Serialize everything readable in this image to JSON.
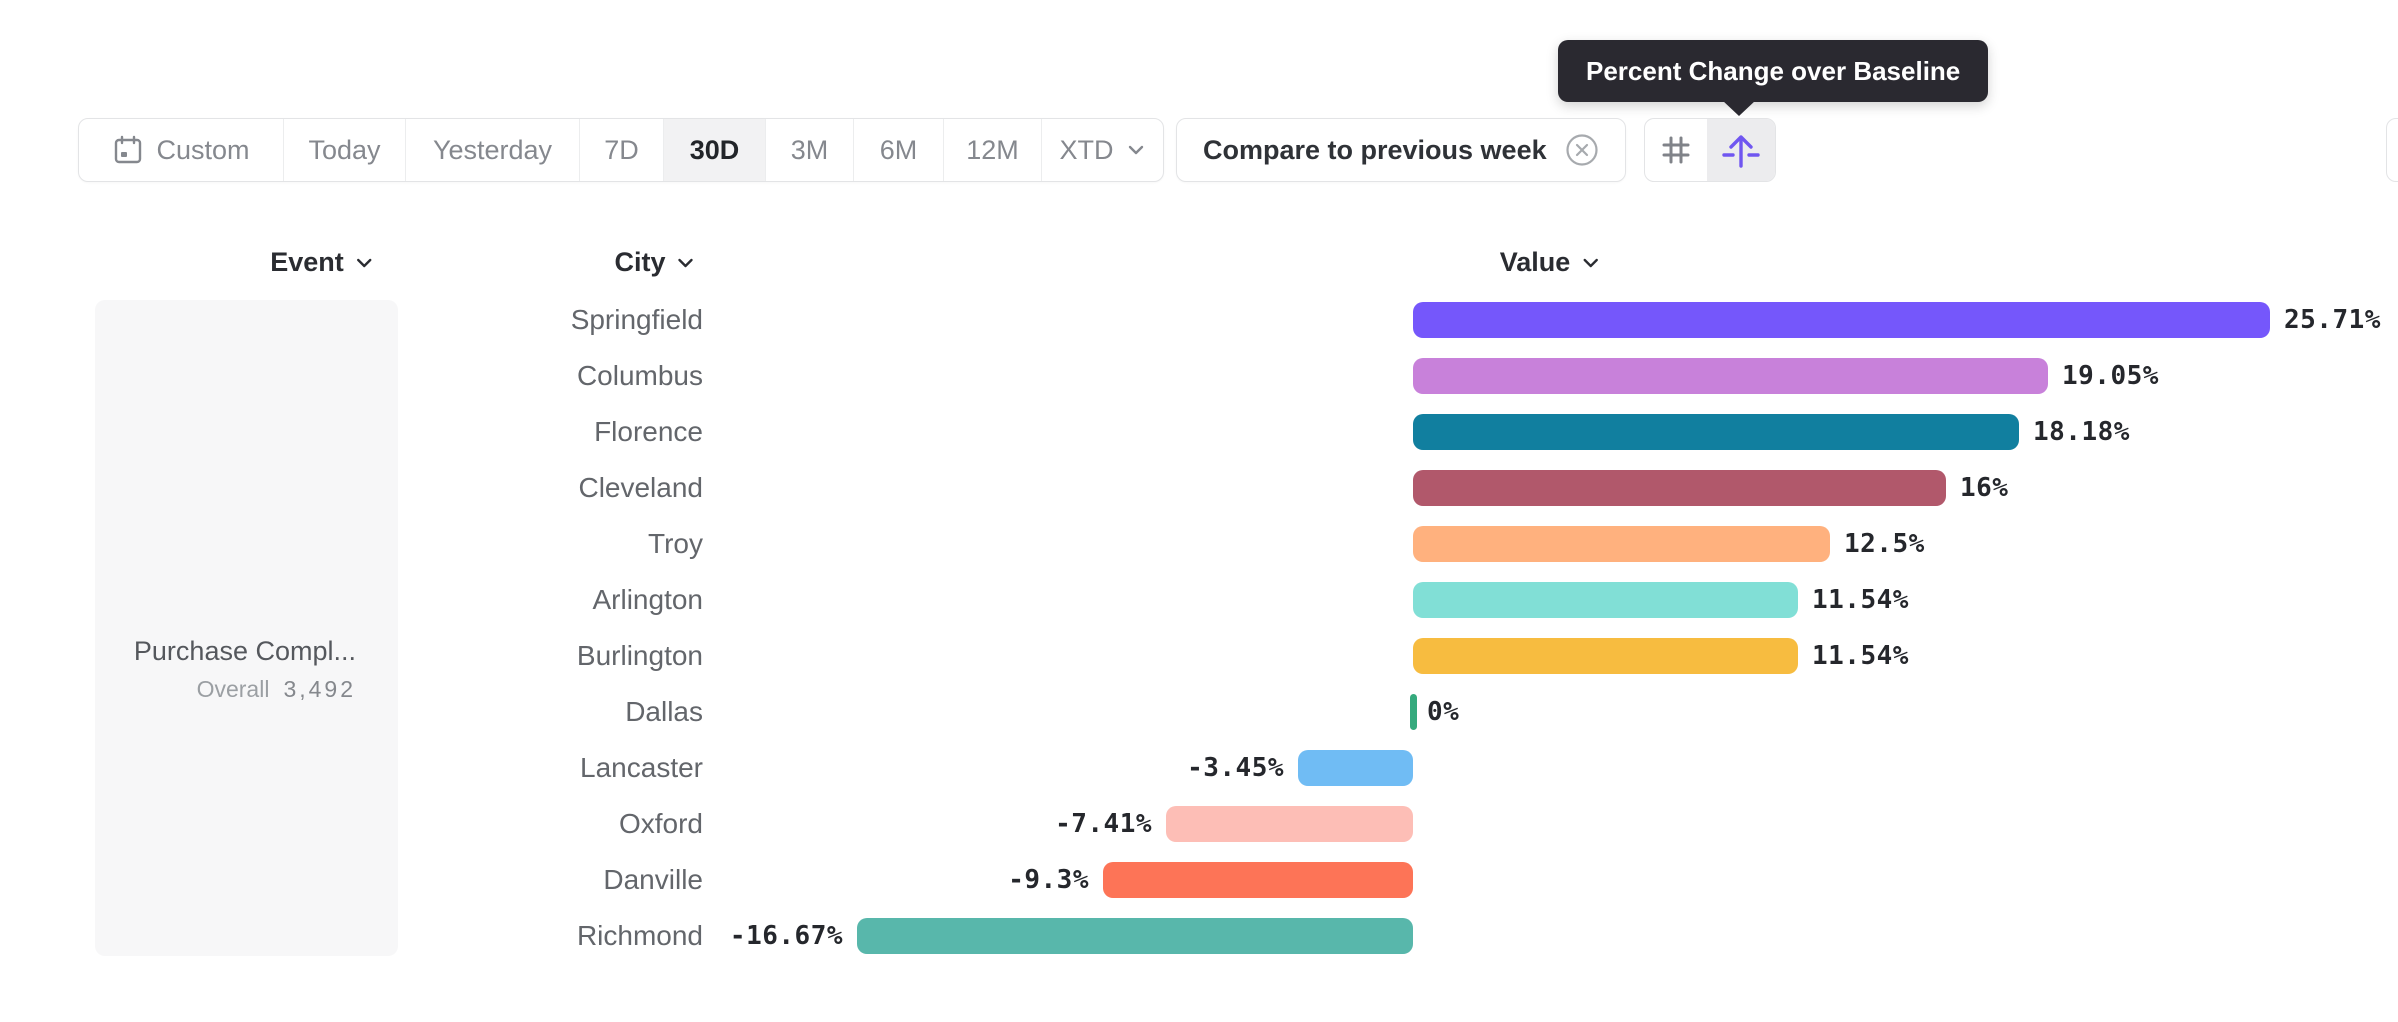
{
  "tooltip": {
    "text": "Percent Change over Baseline"
  },
  "toolbar": {
    "date_ranges": [
      {
        "label": "Custom",
        "icon": "calendar-icon",
        "selected": false
      },
      {
        "label": "Today",
        "selected": false
      },
      {
        "label": "Yesterday",
        "selected": false
      },
      {
        "label": "7D",
        "selected": false
      },
      {
        "label": "30D",
        "selected": true
      },
      {
        "label": "3M",
        "selected": false
      },
      {
        "label": "6M",
        "selected": false
      },
      {
        "label": "12M",
        "selected": false
      },
      {
        "label": "XTD",
        "icon": "chevron-down-icon",
        "selected": false
      }
    ],
    "selected_range": "30D",
    "compare_chip": {
      "label": "Compare to previous week",
      "close_icon": "x-circle-icon"
    },
    "view_buttons": [
      {
        "icon": "hash-grid-icon",
        "selected": false
      },
      {
        "icon": "baseline-arrow-icon",
        "selected": true,
        "tooltip": "Percent Change over Baseline"
      }
    ]
  },
  "columns": [
    {
      "label": "Event",
      "icon": "chevron-down-icon"
    },
    {
      "label": "City",
      "icon": "chevron-down-icon"
    },
    {
      "label": "Value",
      "icon": "chevron-down-icon"
    }
  ],
  "event_panel": {
    "title": "Purchase Compl...",
    "overall_label": "Overall",
    "overall_value": "3,492"
  },
  "chart_data": {
    "type": "bar",
    "orientation": "horizontal",
    "title": "Value",
    "categories": [
      "Springfield",
      "Columbus",
      "Florence",
      "Cleveland",
      "Troy",
      "Arlington",
      "Burlington",
      "Dallas",
      "Lancaster",
      "Oxford",
      "Danville",
      "Richmond"
    ],
    "values": [
      25.71,
      19.05,
      18.18,
      16,
      12.5,
      11.54,
      11.54,
      0,
      -3.45,
      -7.41,
      -9.3,
      -16.67
    ],
    "value_labels": [
      "25.71%",
      "19.05%",
      "18.18%",
      "16%",
      "12.5%",
      "11.54%",
      "11.54%",
      "0%",
      "-3.45%",
      "-7.41%",
      "-9.3%",
      "-16.67%"
    ],
    "bar_colors": [
      "#7557FB",
      "#C881DA",
      "#117F9F",
      "#B1586B",
      "#FFB17E",
      "#81DFD6",
      "#F7BC40",
      "#35AA7D",
      "#70BCF4",
      "#FDBEB6",
      "#FD7457",
      "#58B7AB"
    ],
    "unit": "%",
    "baseline": 0,
    "xlim": [
      -16.67,
      25.71
    ],
    "grid": false,
    "legend": false
  },
  "colors": {
    "accent_purple": "#7056F0",
    "zero_marker_green": "#35AA7D",
    "tooltip_bg": "#2A2930",
    "selected_segment_bg": "#F2F2F3",
    "panel_bg": "#F7F7F8",
    "border": "#E3E4E6"
  }
}
